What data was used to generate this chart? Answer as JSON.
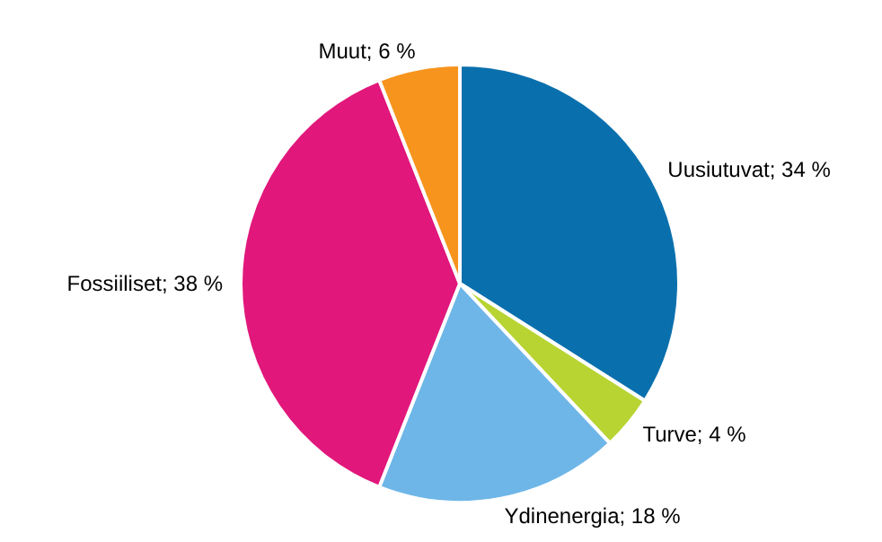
{
  "chart_data": {
    "type": "pie",
    "categories": [
      "Uusiutuvat",
      "Turve",
      "Ydinenergia",
      "Fossiiliset",
      "Muut"
    ],
    "values": [
      34,
      4,
      18,
      38,
      6
    ],
    "value_labels": [
      "34 %",
      "4 %",
      "18 %",
      "38 %",
      "6 %"
    ],
    "colors": [
      "#0a70ad",
      "#b8d432",
      "#6eb6e8",
      "#e1177b",
      "#f7941e"
    ],
    "legend": false
  }
}
